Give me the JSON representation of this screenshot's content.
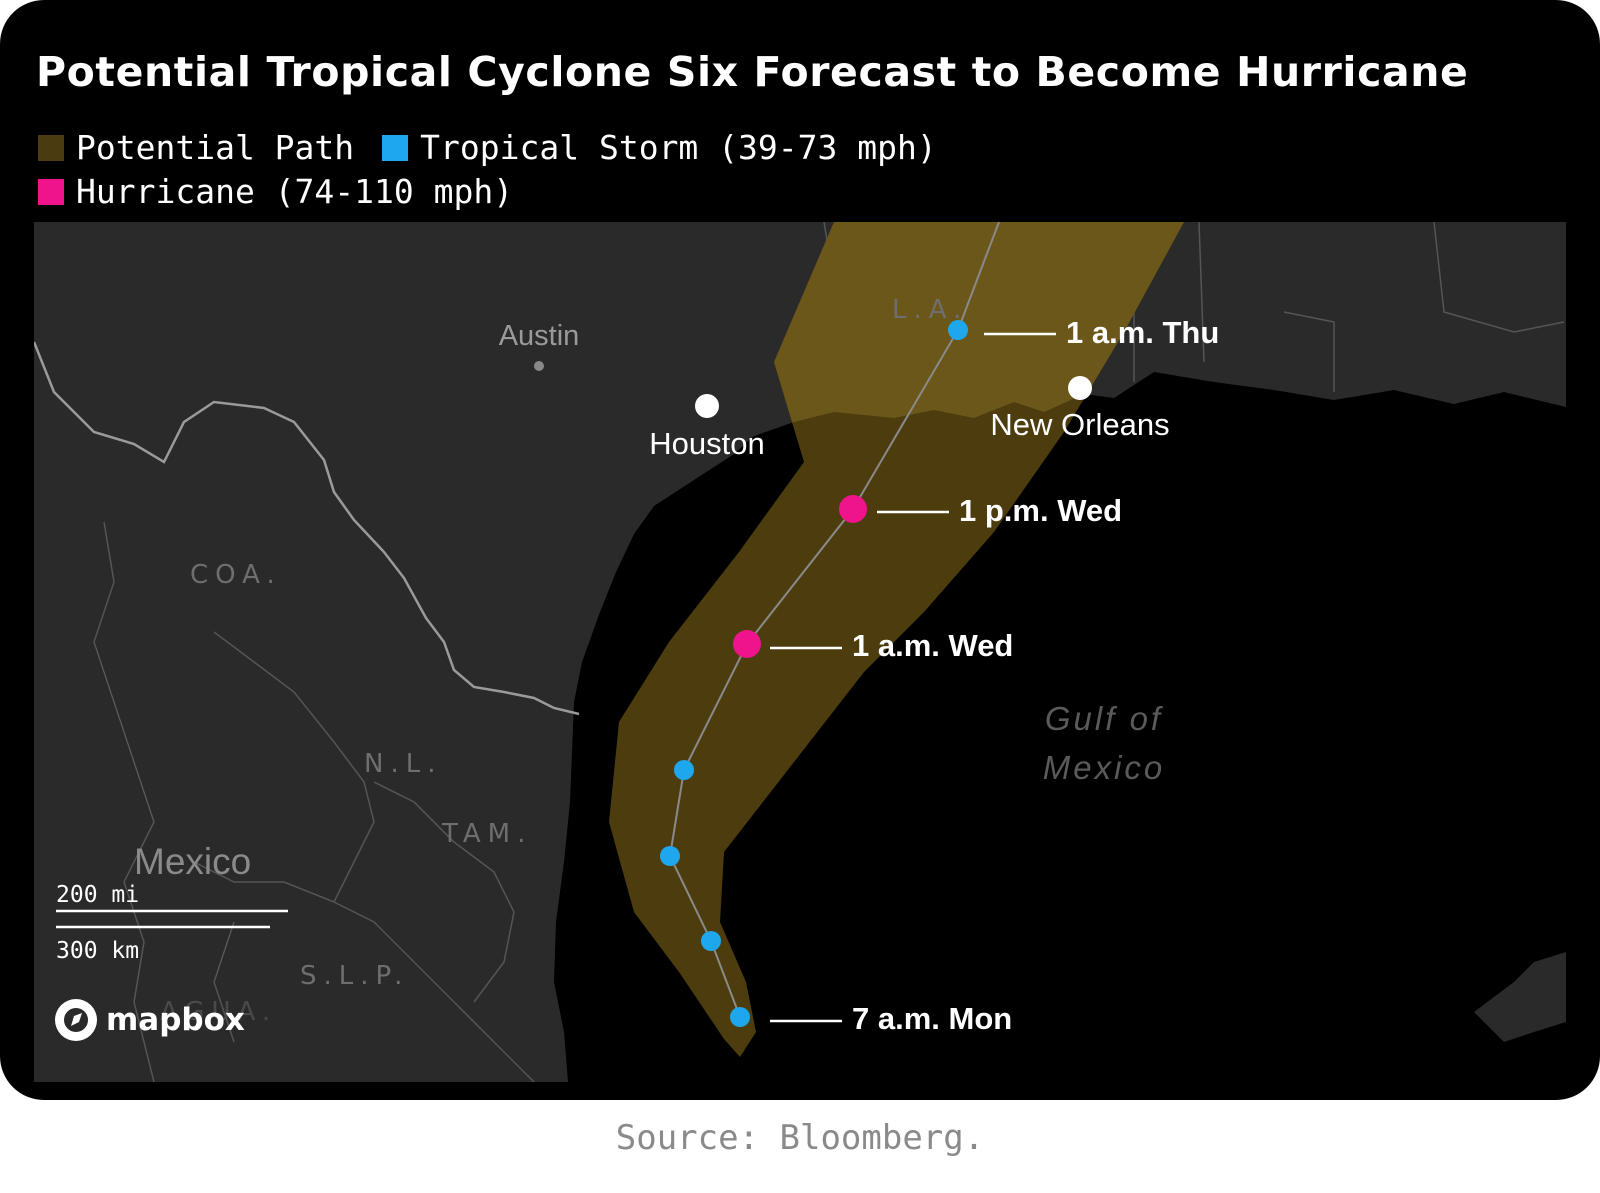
{
  "title": "Potential Tropical Cyclone Six Forecast to Become Hurricane",
  "legend": [
    {
      "label": "Potential Path",
      "color": "#4a3c10"
    },
    {
      "label": "Tropical Storm (39-73 mph)",
      "color": "#1ea7ec"
    },
    {
      "label": "Hurricane (74-110 mph)",
      "color": "#f0148c"
    }
  ],
  "colors": {
    "land": "#2a2a2a",
    "water": "#000000",
    "cone": "#4d3d0e",
    "cone_on_land": "#6b5719",
    "tropical_storm": "#1ea7ec",
    "hurricane": "#f0148c",
    "city": "#ffffff"
  },
  "map": {
    "cities": [
      {
        "name": "Austin",
        "marker": "small"
      },
      {
        "name": "Houston",
        "marker": "large"
      },
      {
        "name": "New Orleans",
        "marker": "large"
      }
    ],
    "regions": [
      "L.A.",
      "COA.",
      "N.L.",
      "TAM.",
      "S.L.P.",
      "AGUA."
    ],
    "country": "Mexico",
    "water": [
      "Gulf of",
      "Mexico"
    ],
    "track_labels": [
      "1 a.m. Thu",
      "1 p.m. Wed",
      "1 a.m. Wed",
      "7 a.m. Mon"
    ],
    "track_points": [
      {
        "category": "tropical_storm",
        "label": "7 a.m. Mon"
      },
      {
        "category": "tropical_storm",
        "label": ""
      },
      {
        "category": "tropical_storm",
        "label": ""
      },
      {
        "category": "tropical_storm",
        "label": ""
      },
      {
        "category": "hurricane",
        "label": "1 a.m. Wed"
      },
      {
        "category": "hurricane",
        "label": "1 p.m. Wed"
      },
      {
        "category": "tropical_storm",
        "label": "1 a.m. Thu"
      }
    ],
    "scale": {
      "mi": "200 mi",
      "km": "300 km"
    },
    "attribution": "mapbox"
  },
  "source": "Source: Bloomberg."
}
